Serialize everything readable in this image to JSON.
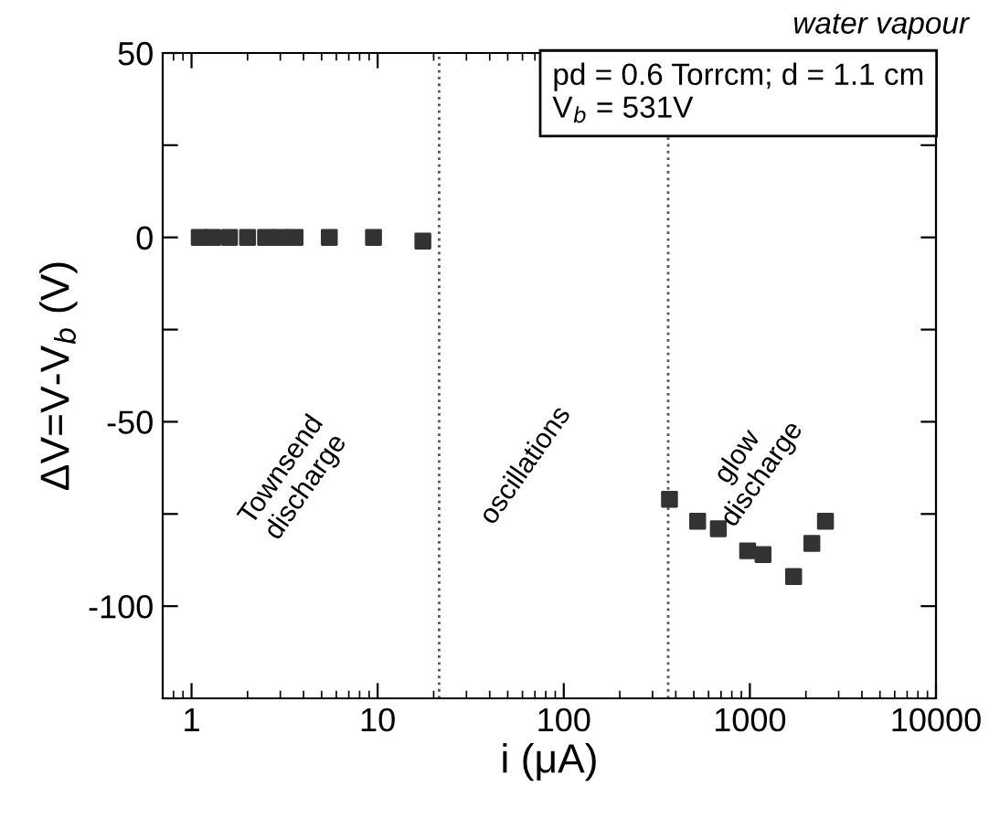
{
  "chart_data": {
    "type": "scatter",
    "title": "water vapour",
    "xlabel": "i (μA)",
    "ylabel": "ΔV=V-V$_{b}$ (V)",
    "annotations": [
      "pd = 0.6 Torrcm; d = 1.1 cm\nV$_{b}$ = 531V",
      "Townsend\ndischarge",
      "oscillations",
      "glow\ndischarge"
    ],
    "series": [
      {
        "color": "#333333",
        "x": [
          1.1,
          1.3,
          1.6,
          2,
          2.5,
          3,
          3.6,
          5.5,
          9.5,
          17.5,
          370,
          524,
          677,
          973,
          1177,
          1718,
          2153,
          2548
        ],
        "values": [
          0,
          0,
          0,
          0,
          0,
          0,
          0,
          0,
          0,
          -1,
          -71,
          -77,
          -79,
          -85,
          -86,
          -92,
          -83,
          -77
        ]
      }
    ],
    "marker": "square",
    "log": "x",
    "xlim": [
      0.7,
      10000
    ],
    "xticks": [
      1,
      10,
      100,
      1000,
      10000
    ],
    "ylim": [
      -125,
      50
    ],
    "yticks": [
      {
        "value": -125,
        "label": null
      },
      {
        "value": -100,
        "label": "-100"
      },
      {
        "value": -75,
        "label": null
      },
      {
        "value": -50,
        "label": "-50"
      },
      {
        "value": -25,
        "label": null
      },
      0,
      {
        "value": 25,
        "label": null
      },
      50
    ],
    "ref_lines": [
      {
        "axis": "x",
        "value": 21.4,
        "line_style": "dotted",
        "color": "#555555"
      },
      {
        "axis": "x",
        "value": 364,
        "line_style": "dotted",
        "color": "#555555"
      }
    ],
    "grid": false,
    "legend": false
  }
}
